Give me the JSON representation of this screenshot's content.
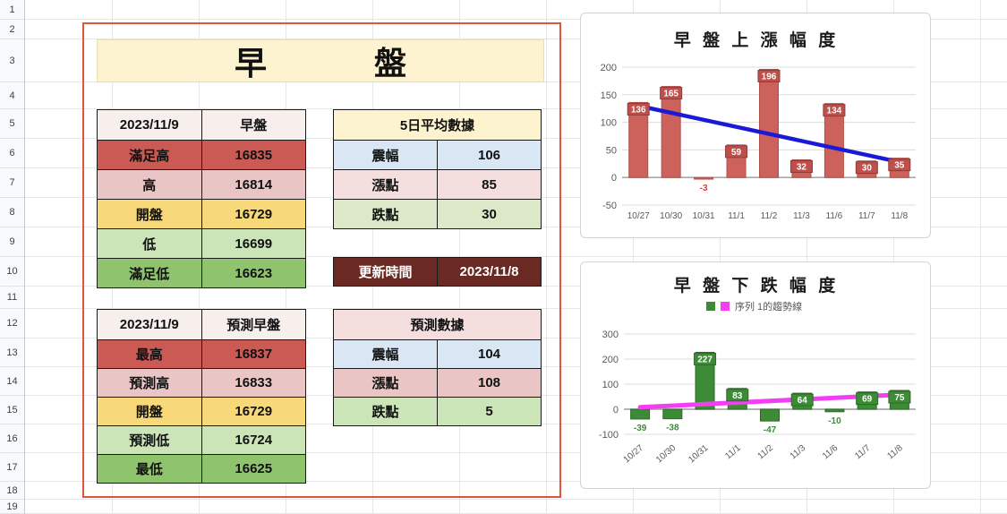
{
  "sheet": {
    "row_numbers": [
      "1",
      "2",
      "3",
      "4",
      "5",
      "6",
      "7",
      "8",
      "9",
      "10",
      "11",
      "12",
      "13",
      "14",
      "15",
      "16",
      "17",
      "18",
      "19"
    ]
  },
  "colors": {
    "red_border": "#e2553d",
    "banner_bg": "#fdf3d0",
    "header_bg": "#f6efec"
  },
  "banner": {
    "left": "早",
    "right": "盤"
  },
  "tables": {
    "actual": {
      "header": [
        "2023/11/9",
        "早盤"
      ],
      "rows": [
        {
          "label": "滿足高",
          "value": "16835",
          "bg": "#cb5a55"
        },
        {
          "label": "高",
          "value": "16814",
          "bg": "#e9c6c5"
        },
        {
          "label": "開盤",
          "value": "16729",
          "bg": "#f8d979"
        },
        {
          "label": "低",
          "value": "16699",
          "bg": "#cbe5b8"
        },
        {
          "label": "滿足低",
          "value": "16623",
          "bg": "#90c36e"
        }
      ]
    },
    "forecast": {
      "header": [
        "2023/11/9",
        "預測早盤"
      ],
      "rows": [
        {
          "label": "最高",
          "value": "16837",
          "bg": "#cb5a55"
        },
        {
          "label": "預測高",
          "value": "16833",
          "bg": "#e9c6c5"
        },
        {
          "label": "開盤",
          "value": "16729",
          "bg": "#f8d979"
        },
        {
          "label": "預測低",
          "value": "16724",
          "bg": "#cbe5b8"
        },
        {
          "label": "最低",
          "value": "16625",
          "bg": "#90c36e"
        }
      ]
    },
    "avg5": {
      "title": "5日平均數據",
      "title_bg": "#fdf3cf",
      "rows": [
        {
          "label": "震幅",
          "value": "106",
          "bg": "#d9e7f4"
        },
        {
          "label": "漲點",
          "value": "85",
          "bg": "#f4dfde"
        },
        {
          "label": "跌點",
          "value": "30",
          "bg": "#dce8c8"
        }
      ]
    },
    "update": {
      "label": "更新時間",
      "value": "2023/11/8",
      "bg": "#6a2a23"
    },
    "pred": {
      "title": "預測數據",
      "title_bg": "#f4dfde",
      "rows": [
        {
          "label": "震幅",
          "value": "104",
          "bg": "#d9e7f4"
        },
        {
          "label": "漲點",
          "value": "108",
          "bg": "#e9c6c5"
        },
        {
          "label": "跌點",
          "value": "5",
          "bg": "#cbe5b8"
        }
      ]
    }
  },
  "chart_data": [
    {
      "type": "bar",
      "title": "早 盤 上 漲 幅 度",
      "categories": [
        "10/27",
        "10/30",
        "10/31",
        "11/1",
        "11/2",
        "11/3",
        "11/6",
        "11/7",
        "11/8"
      ],
      "values": [
        136,
        165,
        -3,
        59,
        196,
        32,
        134,
        30,
        35
      ],
      "ylim": [
        -50,
        200
      ],
      "yticks": [
        200,
        150,
        100,
        50,
        0,
        -50
      ],
      "bar_color": "#cd625c",
      "bar_stroke": "#b0504b",
      "label_bg": "#bf4f4b",
      "label_stroke": "#8e3b38",
      "neg_label_color": "#e03b31",
      "trendline": {
        "color": "#1a1ad6",
        "start": 130,
        "end": 28
      }
    },
    {
      "type": "bar",
      "title": "早 盤 下 跌 幅 度",
      "legend": "序列 1的趨勢線",
      "legend_colors": [
        "#3d8b37",
        "#f23ff2"
      ],
      "categories": [
        "10/27",
        "10/30",
        "10/31",
        "11/1",
        "11/2",
        "11/3",
        "11/6",
        "11/7",
        "11/8"
      ],
      "values": [
        -39,
        -38,
        227,
        83,
        -47,
        64,
        -10,
        69,
        75
      ],
      "ylim": [
        -100,
        300
      ],
      "yticks": [
        300,
        200,
        100,
        0,
        -100
      ],
      "bar_color": "#3d8b37",
      "bar_stroke": "#2c6b26",
      "label_bg": "#3d8b37",
      "label_stroke": "#2c6b26",
      "neg_label_color": "#3d8b37",
      "trendline": {
        "color": "#f23ff2",
        "start": 8,
        "end": 58
      }
    }
  ]
}
